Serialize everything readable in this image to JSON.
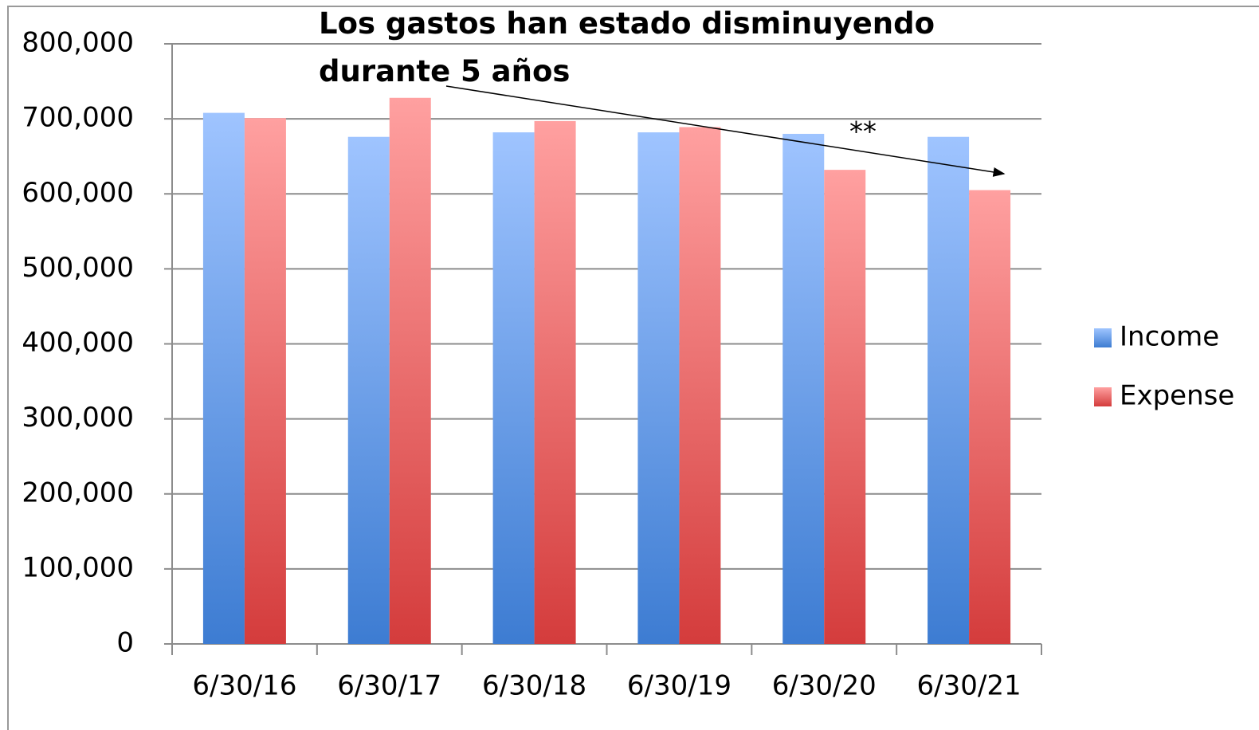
{
  "chart_data": {
    "type": "bar",
    "annotations": [
      "Los gastos han estado disminuyendo  durante 5 años",
      "**"
    ],
    "categories": [
      "6/30/16",
      "6/30/17",
      "6/30/18",
      "6/30/19",
      "6/30/20",
      "6/30/21"
    ],
    "series": [
      {
        "name": "Income",
        "color": "#5b95e6",
        "values": [
          708000,
          676000,
          682000,
          682000,
          680000,
          676000
        ]
      },
      {
        "name": "Expense",
        "color": "#e96060",
        "values": [
          701000,
          728000,
          697000,
          689000,
          632000,
          605000
        ]
      }
    ],
    "ylim": [
      0,
      800000
    ],
    "yticks": [
      0,
      {
        "value": 100000,
        "label": "100,000"
      },
      {
        "value": 200000,
        "label": "200,000"
      },
      {
        "value": 300000,
        "label": "300,000"
      },
      {
        "value": 400000,
        "label": "400,000"
      },
      {
        "value": 500000,
        "label": "500,000"
      },
      {
        "value": 600000,
        "label": "600,000"
      },
      {
        "value": 700000,
        "label": "700,000"
      },
      {
        "value": 800000,
        "label": "800,000"
      }
    ],
    "grid": true,
    "legend": "right"
  }
}
